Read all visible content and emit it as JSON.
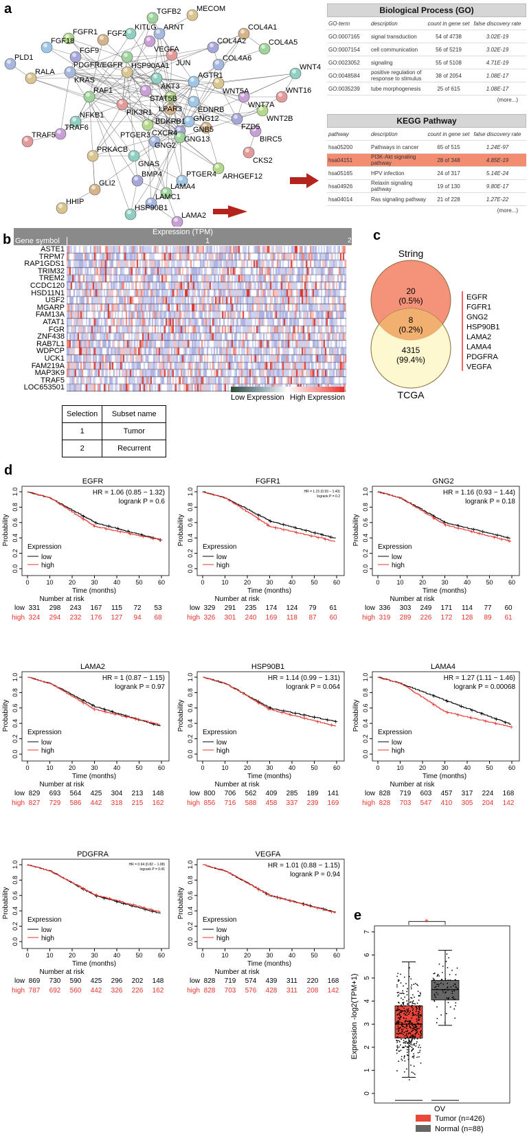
{
  "panels": {
    "a": "a",
    "b": "b",
    "c": "c",
    "d": "d",
    "e": "e"
  },
  "network": {
    "nodes": [
      "TGFB2",
      "ARNT",
      "MECOM",
      "KITLG",
      "VEGFA",
      "JUN",
      "FGFR1",
      "FGF18",
      "FGF2",
      "FGF9",
      "PDGFR/EGFR",
      "KRAS",
      "HSP90AA1",
      "AKT3",
      "STAT5B",
      "PIK3R1",
      "LPAR3",
      "AGTR1",
      "COL4A1",
      "COL4A2",
      "COL4A5",
      "COL4A6",
      "WNT5A",
      "WNT4",
      "WNT7A",
      "WNT16",
      "WNT2B",
      "EDNRB",
      "BDKRB1",
      "FZD5",
      "RAF1",
      "PLD1",
      "RALA",
      "NFKB1",
      "TRAF6",
      "TRAF5",
      "CXCR4",
      "GNB5",
      "GNG12",
      "GNG13",
      "GNG2",
      "PTGER3",
      "PRKACB",
      "GNAS",
      "BIRC5",
      "CKS2",
      "ARHGEF12",
      "PTGER4",
      "GLI2",
      "BMP4",
      "LAMA4",
      "LAMC1",
      "HHIP",
      "HSP90B1",
      "LAMA2"
    ]
  },
  "go_table": {
    "title": "Biological Process (GO)",
    "headers": [
      "GO-term",
      "description",
      "count in gene set",
      "false discovery rate"
    ],
    "rows": [
      [
        "GO:0007165",
        "signal transduction",
        "54 of 4738",
        "3.02E-19"
      ],
      [
        "GO:0007154",
        "cell communication",
        "56 of 5219",
        "3.02E-19"
      ],
      [
        "GO:0023052",
        "signaling",
        "55 of 5108",
        "4.71E-19"
      ],
      [
        "GO:0048584",
        "positive regulation of response to stimulus",
        "38 of 2054",
        "1.08E-17"
      ],
      [
        "GO:0035239",
        "tube morphogenesis",
        "25 of 615",
        "1.08E-17"
      ]
    ],
    "more": "(more...)"
  },
  "kegg_table": {
    "title": "KEGG Pathway",
    "headers": [
      "pathway",
      "description",
      "count in gene set",
      "false discovery rate"
    ],
    "rows": [
      [
        "hsa05200",
        "Pathways in cancer",
        "65 of 515",
        "1.24E-97"
      ],
      [
        "hsa04151",
        "PI3K-Akt signaling pathway",
        "28 of 348",
        "4.85E-19"
      ],
      [
        "hsa05165",
        "HPV infection",
        "24 of 317",
        "5.14E-24"
      ],
      [
        "hsa04926",
        "Relaxin signaling pathway",
        "19 of 130",
        "9.80E-17"
      ],
      [
        "hsa04014",
        "Ras signaling pathway",
        "21 of 228",
        "1.27E-22"
      ]
    ],
    "highlight_row": 1,
    "more": "(more...)"
  },
  "heatmap": {
    "title": "Expression (TPM)",
    "gene_header": "Gene symbol",
    "group1": "1",
    "group2": "2",
    "genes": [
      "ASTE1",
      "TRPM7",
      "RAP1GDS1",
      "TRIM32",
      "TREM2",
      "CCDC120",
      "HSD11N1",
      "USF2",
      "MGARP",
      "FAM13A",
      "ATAT1",
      "FGR",
      "ZNF438",
      "RAB7L1",
      "WDPCP",
      "UCK1",
      "FAM219A",
      "MAP3K9",
      "TRAF5",
      "LOC653501"
    ],
    "legend_low": "Low Expression",
    "legend_high": "High Expression",
    "colors": {
      "low": "#2f4a3a",
      "mid": "#ffffff",
      "high": "#e8312a",
      "base": "#c9cbeb"
    }
  },
  "selection_table": {
    "headers": [
      "Selection",
      "Subset name"
    ],
    "rows": [
      [
        "1",
        "Tumor"
      ],
      [
        "2",
        "Recurrent"
      ]
    ]
  },
  "venn": {
    "top_label": "String",
    "bottom_label": "TCGA",
    "top_only": "20",
    "top_only_pct": "(0.5%)",
    "overlap": "8",
    "overlap_pct": "(0.2%)",
    "bottom_only": "4315",
    "bottom_only_pct": "(99.4%)",
    "genes": [
      "EGFR",
      "FGFR1",
      "GNG2",
      "HSP90B1",
      "LAMA2",
      "LAMA4",
      "PDGFRA",
      "VEGFA"
    ],
    "colors": {
      "top": "#f4937a",
      "bottom": "#fbf3a8",
      "overlap": "#f2b070"
    }
  },
  "chart_data": [
    {
      "type": "line",
      "title": "EGFR",
      "hr": "HR = 1.06 (0.85 − 1.32)",
      "logrank": "logrank P = 0.6",
      "small": false,
      "xlabel": "Time (months)",
      "ylabel": "Probability",
      "xlim": [
        0,
        60
      ],
      "ylim": [
        0,
        1
      ],
      "xticks": [
        0,
        10,
        20,
        30,
        40,
        50,
        60
      ],
      "yticks": [
        "0.0",
        "0.2",
        "0.4",
        "0.6",
        "0.8",
        "1.0"
      ],
      "legend_title": "Expression",
      "series": [
        {
          "name": "low",
          "color": "#000000",
          "p30": 0.6,
          "p60": 0.37
        },
        {
          "name": "high",
          "color": "#e8312a",
          "p30": 0.55,
          "p60": 0.37
        }
      ],
      "risk_title": "Number at risk",
      "risk_low": [
        331,
        298,
        243,
        167,
        115,
        72,
        53
      ],
      "risk_high": [
        324,
        294,
        232,
        176,
        127,
        94,
        68
      ]
    },
    {
      "type": "line",
      "title": "FGFR1",
      "hr": "HR = 1.15 (0.93 − 1.43)",
      "logrank": "logrank P = 0.2",
      "small": true,
      "xlabel": "Time (months)",
      "ylabel": "Probability",
      "xlim": [
        0,
        60
      ],
      "ylim": [
        0,
        1
      ],
      "xticks": [
        0,
        10,
        20,
        30,
        40,
        50,
        60
      ],
      "yticks": [
        "0.0",
        "0.2",
        "0.4",
        "0.6",
        "0.8",
        "1.0"
      ],
      "legend_title": "Expression",
      "series": [
        {
          "name": "low",
          "color": "#000000",
          "p30": 0.62,
          "p60": 0.39
        },
        {
          "name": "high",
          "color": "#e8312a",
          "p30": 0.55,
          "p60": 0.35
        }
      ],
      "risk_title": "Number at risk",
      "risk_low": [
        329,
        291,
        235,
        174,
        124,
        79,
        61
      ],
      "risk_high": [
        326,
        301,
        240,
        169,
        118,
        87,
        60
      ]
    },
    {
      "type": "line",
      "title": "GNG2",
      "hr": "HR = 1.16 (0.93 − 1.44)",
      "logrank": "logrank P = 0.18",
      "small": false,
      "xlabel": "Time (months)",
      "ylabel": "Probability",
      "xlim": [
        0,
        60
      ],
      "ylim": [
        0,
        1
      ],
      "xticks": [
        0,
        10,
        20,
        30,
        40,
        50,
        60
      ],
      "yticks": [
        "0.0",
        "0.2",
        "0.4",
        "0.6",
        "0.8",
        "1.0"
      ],
      "legend_title": "Expression",
      "series": [
        {
          "name": "low",
          "color": "#000000",
          "p30": 0.6,
          "p60": 0.39
        },
        {
          "name": "high",
          "color": "#e8312a",
          "p30": 0.57,
          "p60": 0.35
        }
      ],
      "risk_title": "Number at risk",
      "risk_low": [
        336,
        303,
        249,
        171,
        114,
        77,
        60
      ],
      "risk_high": [
        319,
        289,
        226,
        172,
        128,
        89,
        61
      ]
    },
    {
      "type": "line",
      "title": "LAMA2",
      "hr": "HR = 1 (0.87 − 1.15)",
      "logrank": "logrank P = 0.97",
      "small": false,
      "xlabel": "Time (months)",
      "ylabel": "Probability",
      "xlim": [
        0,
        60
      ],
      "ylim": [
        0,
        1
      ],
      "xticks": [
        0,
        10,
        20,
        30,
        40,
        50,
        60
      ],
      "yticks": [
        "0.0",
        "0.2",
        "0.4",
        "0.6",
        "0.8",
        "1.0"
      ],
      "legend_title": "Expression",
      "series": [
        {
          "name": "low",
          "color": "#000000",
          "p30": 0.62,
          "p60": 0.36
        },
        {
          "name": "high",
          "color": "#e8312a",
          "p30": 0.58,
          "p60": 0.38
        }
      ],
      "risk_title": "Number at risk",
      "risk_low": [
        829,
        693,
        564,
        425,
        304,
        213,
        148
      ],
      "risk_high": [
        827,
        729,
        586,
        442,
        318,
        215,
        162
      ]
    },
    {
      "type": "line",
      "title": "HSP90B1",
      "hr": "HR = 1.14 (0.99 − 1.31)",
      "logrank": "logrank P = 0.064",
      "small": false,
      "xlabel": "Time (months)",
      "ylabel": "Probability",
      "xlim": [
        0,
        60
      ],
      "ylim": [
        0,
        1
      ],
      "xticks": [
        0,
        10,
        20,
        30,
        40,
        50,
        60
      ],
      "yticks": [
        "0.0",
        "0.2",
        "0.4",
        "0.6",
        "0.8",
        "1.0"
      ],
      "legend_title": "Expression",
      "series": [
        {
          "name": "low",
          "color": "#000000",
          "p30": 0.6,
          "p60": 0.42
        },
        {
          "name": "high",
          "color": "#e8312a",
          "p30": 0.58,
          "p60": 0.36
        }
      ],
      "risk_title": "Number at risk",
      "risk_low": [
        800,
        706,
        562,
        409,
        285,
        189,
        141
      ],
      "risk_high": [
        856,
        716,
        588,
        458,
        337,
        239,
        169
      ]
    },
    {
      "type": "line",
      "title": "LAMA4",
      "hr": "HR = 1.27 (1.11 − 1.46)",
      "logrank": "logrank P = 0.00068",
      "small": false,
      "xlabel": "Time (months)",
      "ylabel": "Probability",
      "xlim": [
        0,
        60
      ],
      "ylim": [
        0,
        1
      ],
      "xticks": [
        0,
        10,
        20,
        30,
        40,
        50,
        60
      ],
      "yticks": [
        "0.0",
        "0.2",
        "0.4",
        "0.6",
        "0.8",
        "1.0"
      ],
      "legend_title": "Expression",
      "series": [
        {
          "name": "low",
          "color": "#000000",
          "p30": 0.7,
          "p60": 0.38
        },
        {
          "name": "high",
          "color": "#e8312a",
          "p30": 0.55,
          "p60": 0.35
        }
      ],
      "risk_title": "Number at risk",
      "risk_low": [
        828,
        719,
        603,
        457,
        317,
        224,
        168
      ],
      "risk_high": [
        828,
        703,
        547,
        410,
        305,
        204,
        142
      ]
    },
    {
      "type": "line",
      "title": "PDGFRA",
      "hr": "HR = 0.94 (0.82 − 1.08)",
      "logrank": "logrank P = 0.41",
      "small": true,
      "xlabel": "Time (months)",
      "ylabel": "Probability",
      "xlim": [
        0,
        60
      ],
      "ylim": [
        0,
        1
      ],
      "xticks": [
        0,
        10,
        20,
        30,
        40,
        50,
        60
      ],
      "yticks": [
        "0.0",
        "0.2",
        "0.4",
        "0.6",
        "0.8",
        "1.0"
      ],
      "legend_title": "Expression",
      "series": [
        {
          "name": "low",
          "color": "#000000",
          "p30": 0.6,
          "p60": 0.36
        },
        {
          "name": "high",
          "color": "#e8312a",
          "p30": 0.61,
          "p60": 0.38
        }
      ],
      "risk_title": "Number at risk",
      "risk_low": [
        869,
        730,
        590,
        425,
        296,
        202,
        148
      ],
      "risk_high": [
        787,
        692,
        560,
        442,
        326,
        226,
        162
      ]
    },
    {
      "type": "line",
      "title": "VEGFA",
      "hr": "HR = 1.01 (0.88 − 1.15)",
      "logrank": "logrank P = 0.94",
      "small": false,
      "xlabel": "Time (months)",
      "ylabel": "Probability",
      "xlim": [
        0,
        60
      ],
      "ylim": [
        0,
        1
      ],
      "xticks": [
        0,
        10,
        20,
        30,
        40,
        50,
        60
      ],
      "yticks": [
        "0.0",
        "0.2",
        "0.4",
        "0.6",
        "0.8",
        "1.0"
      ],
      "legend_title": "Expression",
      "series": [
        {
          "name": "low",
          "color": "#000000",
          "p30": 0.6,
          "p60": 0.38
        },
        {
          "name": "high",
          "color": "#e8312a",
          "p30": 0.6,
          "p60": 0.37
        }
      ],
      "risk_title": "Number at risk",
      "risk_low": [
        828,
        719,
        574,
        439,
        311,
        220,
        168
      ],
      "risk_high": [
        828,
        703,
        576,
        428,
        311,
        208,
        142
      ]
    },
    {
      "type": "box",
      "ylabel": "Expression -log2(TPM+1)",
      "xlabel": "OV",
      "ylim": [
        0,
        7
      ],
      "yticks": [
        0,
        1,
        2,
        3,
        4,
        5,
        6,
        7
      ],
      "significance": "*",
      "groups": [
        {
          "name": "Tumor (n=426)",
          "n": 426,
          "color": "#e8473a",
          "q1": 2.4,
          "median": 3.0,
          "q3": 3.8,
          "whisker_low": 0.7,
          "whisker_high": 5.7
        },
        {
          "name": "Normal (n=88)",
          "n": 88,
          "color": "#666666",
          "q1": 4.05,
          "median": 4.5,
          "q3": 4.9,
          "whisker_low": 2.95,
          "whisker_high": 6.2
        }
      ]
    }
  ]
}
